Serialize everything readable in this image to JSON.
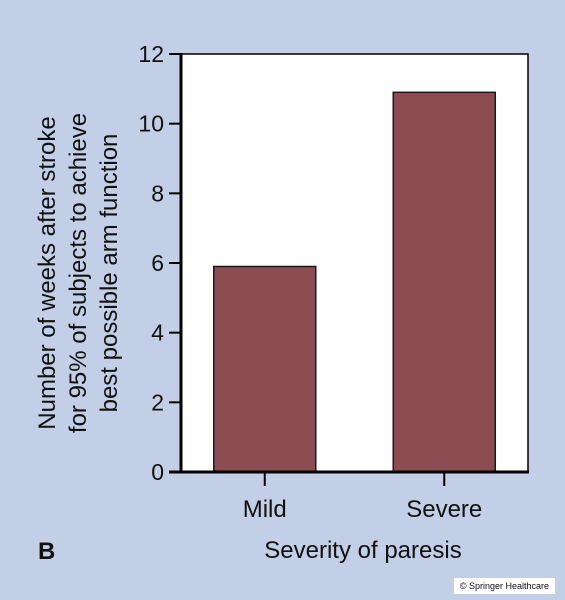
{
  "panel_label": "B",
  "copyright": "© Springer Healthcare",
  "chart_data": {
    "type": "bar",
    "categories": [
      "Mild",
      "Severe"
    ],
    "values": [
      5.9,
      10.9
    ],
    "xlabel": "Severity of paresis",
    "ylabel": [
      "Number of weeks after stroke",
      "for 95% of subjects to achieve",
      "best possible arm function"
    ],
    "ylim": [
      0,
      12
    ],
    "yticks": [
      0,
      2,
      4,
      6,
      8,
      10,
      12
    ],
    "grid": false,
    "colors": {
      "bar": "#8b4c52",
      "bar_edge": "#1a1a1a",
      "plot_bg": "#ffffff",
      "page_bg": "#c3cfe6"
    }
  }
}
